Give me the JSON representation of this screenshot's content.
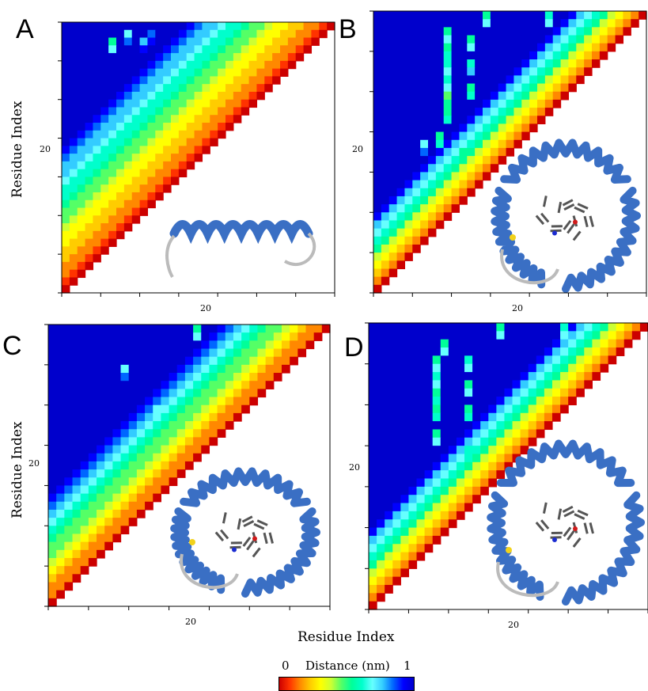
{
  "figure": {
    "y_axis_title": "Residue Index",
    "x_axis_title": "Residue Index"
  },
  "colorbar": {
    "title": "Distance (nm)",
    "min_label": "0",
    "max_label": "1",
    "colors": [
      "#cc0000",
      "#ff3300",
      "#ff8800",
      "#ffcc00",
      "#ffff00",
      "#ccff33",
      "#55ff66",
      "#00ff99",
      "#00ffcc",
      "#66ffff",
      "#33ccff",
      "#0066ff",
      "#0000ff",
      "#0000cc"
    ]
  },
  "chart_data": [
    {
      "type": "heatmap",
      "panel": "A",
      "n_residues": 35,
      "value_range": [
        0,
        1
      ],
      "unit": "nm",
      "x_ticks": [
        {
          "value": 20,
          "label": "20"
        }
      ],
      "y_ticks": [
        {
          "value": 20,
          "label": "20"
        }
      ],
      "structure": "extended",
      "profile": {
        "band_width": 5,
        "gain": 0.16
      },
      "contacts": [
        {
          "i": 18,
          "j": 24,
          "d": 0.62
        },
        {
          "i": 20,
          "j": 27,
          "d": 0.7
        },
        {
          "i": 22,
          "j": 30,
          "d": 0.74
        },
        {
          "i": 24,
          "j": 31,
          "d": 0.66
        },
        {
          "i": 26,
          "j": 33,
          "d": 0.72
        },
        {
          "i": 2,
          "j": 6,
          "d": 0.55
        },
        {
          "i": 1,
          "j": 8,
          "d": 0.7
        },
        {
          "i": 2,
          "j": 10,
          "d": 0.78
        },
        {
          "i": 1,
          "j": 11,
          "d": 0.82
        }
      ]
    },
    {
      "type": "heatmap",
      "panel": "B",
      "n_residues": 35,
      "value_range": [
        0,
        1
      ],
      "unit": "nm",
      "x_ticks": [
        {
          "value": 20,
          "label": "20"
        }
      ],
      "y_ticks": [
        {
          "value": 20,
          "label": "20"
        }
      ],
      "structure": "compact",
      "profile": {
        "band_width": 3,
        "gain": 0.22
      },
      "contacts": [
        {
          "i": 2,
          "j": 9,
          "d": 0.55
        },
        {
          "i": 4,
          "j": 9,
          "d": 0.5
        },
        {
          "i": 6,
          "j": 9,
          "d": 0.58
        },
        {
          "i": 8,
          "j": 9,
          "d": 0.6
        },
        {
          "i": 10,
          "j": 9,
          "d": 0.45
        },
        {
          "i": 12,
          "j": 9,
          "d": 0.52
        },
        {
          "i": 3,
          "j": 12,
          "d": 0.55
        },
        {
          "i": 6,
          "j": 12,
          "d": 0.62
        },
        {
          "i": 9,
          "j": 12,
          "d": 0.5
        },
        {
          "i": 15,
          "j": 8,
          "d": 0.5
        },
        {
          "i": 17,
          "j": 11,
          "d": 0.55
        },
        {
          "i": 16,
          "j": 6,
          "d": 0.7
        },
        {
          "i": 12,
          "j": 20,
          "d": 0.55
        },
        {
          "i": 14,
          "j": 22,
          "d": 0.62
        },
        {
          "i": 20,
          "j": 28,
          "d": 0.55
        },
        {
          "i": 22,
          "j": 26,
          "d": 0.5
        },
        {
          "i": 6,
          "j": 20,
          "d": 0.75
        },
        {
          "i": 3,
          "j": 25,
          "d": 0.8
        },
        {
          "i": 0,
          "j": 30,
          "d": 0.5
        },
        {
          "i": 0,
          "j": 22,
          "d": 0.6
        },
        {
          "i": 0,
          "j": 14,
          "d": 0.55
        }
      ]
    },
    {
      "type": "heatmap",
      "panel": "C",
      "n_residues": 35,
      "value_range": [
        0,
        1
      ],
      "unit": "nm",
      "x_ticks": [
        {
          "value": 20,
          "label": "20"
        }
      ],
      "y_ticks": [
        {
          "value": 20,
          "label": "20"
        }
      ],
      "structure": "compact",
      "profile": {
        "band_width": 4,
        "gain": 0.2
      },
      "contacts": [
        {
          "i": 5,
          "j": 9,
          "d": 0.7
        },
        {
          "i": 10,
          "j": 13,
          "d": 0.66
        },
        {
          "i": 12,
          "j": 19,
          "d": 0.6
        },
        {
          "i": 14,
          "j": 13,
          "d": 0.58
        },
        {
          "i": 16,
          "j": 17,
          "d": 0.55
        },
        {
          "i": 18,
          "j": 22,
          "d": 0.6
        },
        {
          "i": 20,
          "j": 25,
          "d": 0.5
        },
        {
          "i": 22,
          "j": 28,
          "d": 0.55
        },
        {
          "i": 24,
          "j": 30,
          "d": 0.52
        },
        {
          "i": 6,
          "j": 22,
          "d": 0.78
        },
        {
          "i": 0,
          "j": 18,
          "d": 0.55
        },
        {
          "i": 0,
          "j": 26,
          "d": 0.5
        }
      ]
    },
    {
      "type": "heatmap",
      "panel": "D",
      "n_residues": 35,
      "value_range": [
        0,
        1
      ],
      "unit": "nm",
      "x_ticks": [
        {
          "value": 20,
          "label": "20"
        }
      ],
      "y_ticks": [
        {
          "value": 20,
          "label": "20"
        }
      ],
      "structure": "compact",
      "profile": {
        "band_width": 3,
        "gain": 0.22
      },
      "contacts": [
        {
          "i": 4,
          "j": 8,
          "d": 0.55
        },
        {
          "i": 6,
          "j": 8,
          "d": 0.58
        },
        {
          "i": 8,
          "j": 8,
          "d": 0.52
        },
        {
          "i": 10,
          "j": 8,
          "d": 0.5
        },
        {
          "i": 13,
          "j": 8,
          "d": 0.55
        },
        {
          "i": 4,
          "j": 12,
          "d": 0.6
        },
        {
          "i": 7,
          "j": 12,
          "d": 0.55
        },
        {
          "i": 10,
          "j": 12,
          "d": 0.52
        },
        {
          "i": 15,
          "j": 12,
          "d": 0.6
        },
        {
          "i": 2,
          "j": 9,
          "d": 0.55
        },
        {
          "i": 12,
          "j": 20,
          "d": 0.55
        },
        {
          "i": 18,
          "j": 24,
          "d": 0.55
        },
        {
          "i": 20,
          "j": 27,
          "d": 0.5
        },
        {
          "i": 24,
          "j": 30,
          "d": 0.6
        },
        {
          "i": 0,
          "j": 16,
          "d": 0.55
        },
        {
          "i": 0,
          "j": 24,
          "d": 0.6
        },
        {
          "i": 1,
          "j": 28,
          "d": 0.5
        },
        {
          "i": 5,
          "j": 22,
          "d": 0.75
        }
      ]
    }
  ]
}
